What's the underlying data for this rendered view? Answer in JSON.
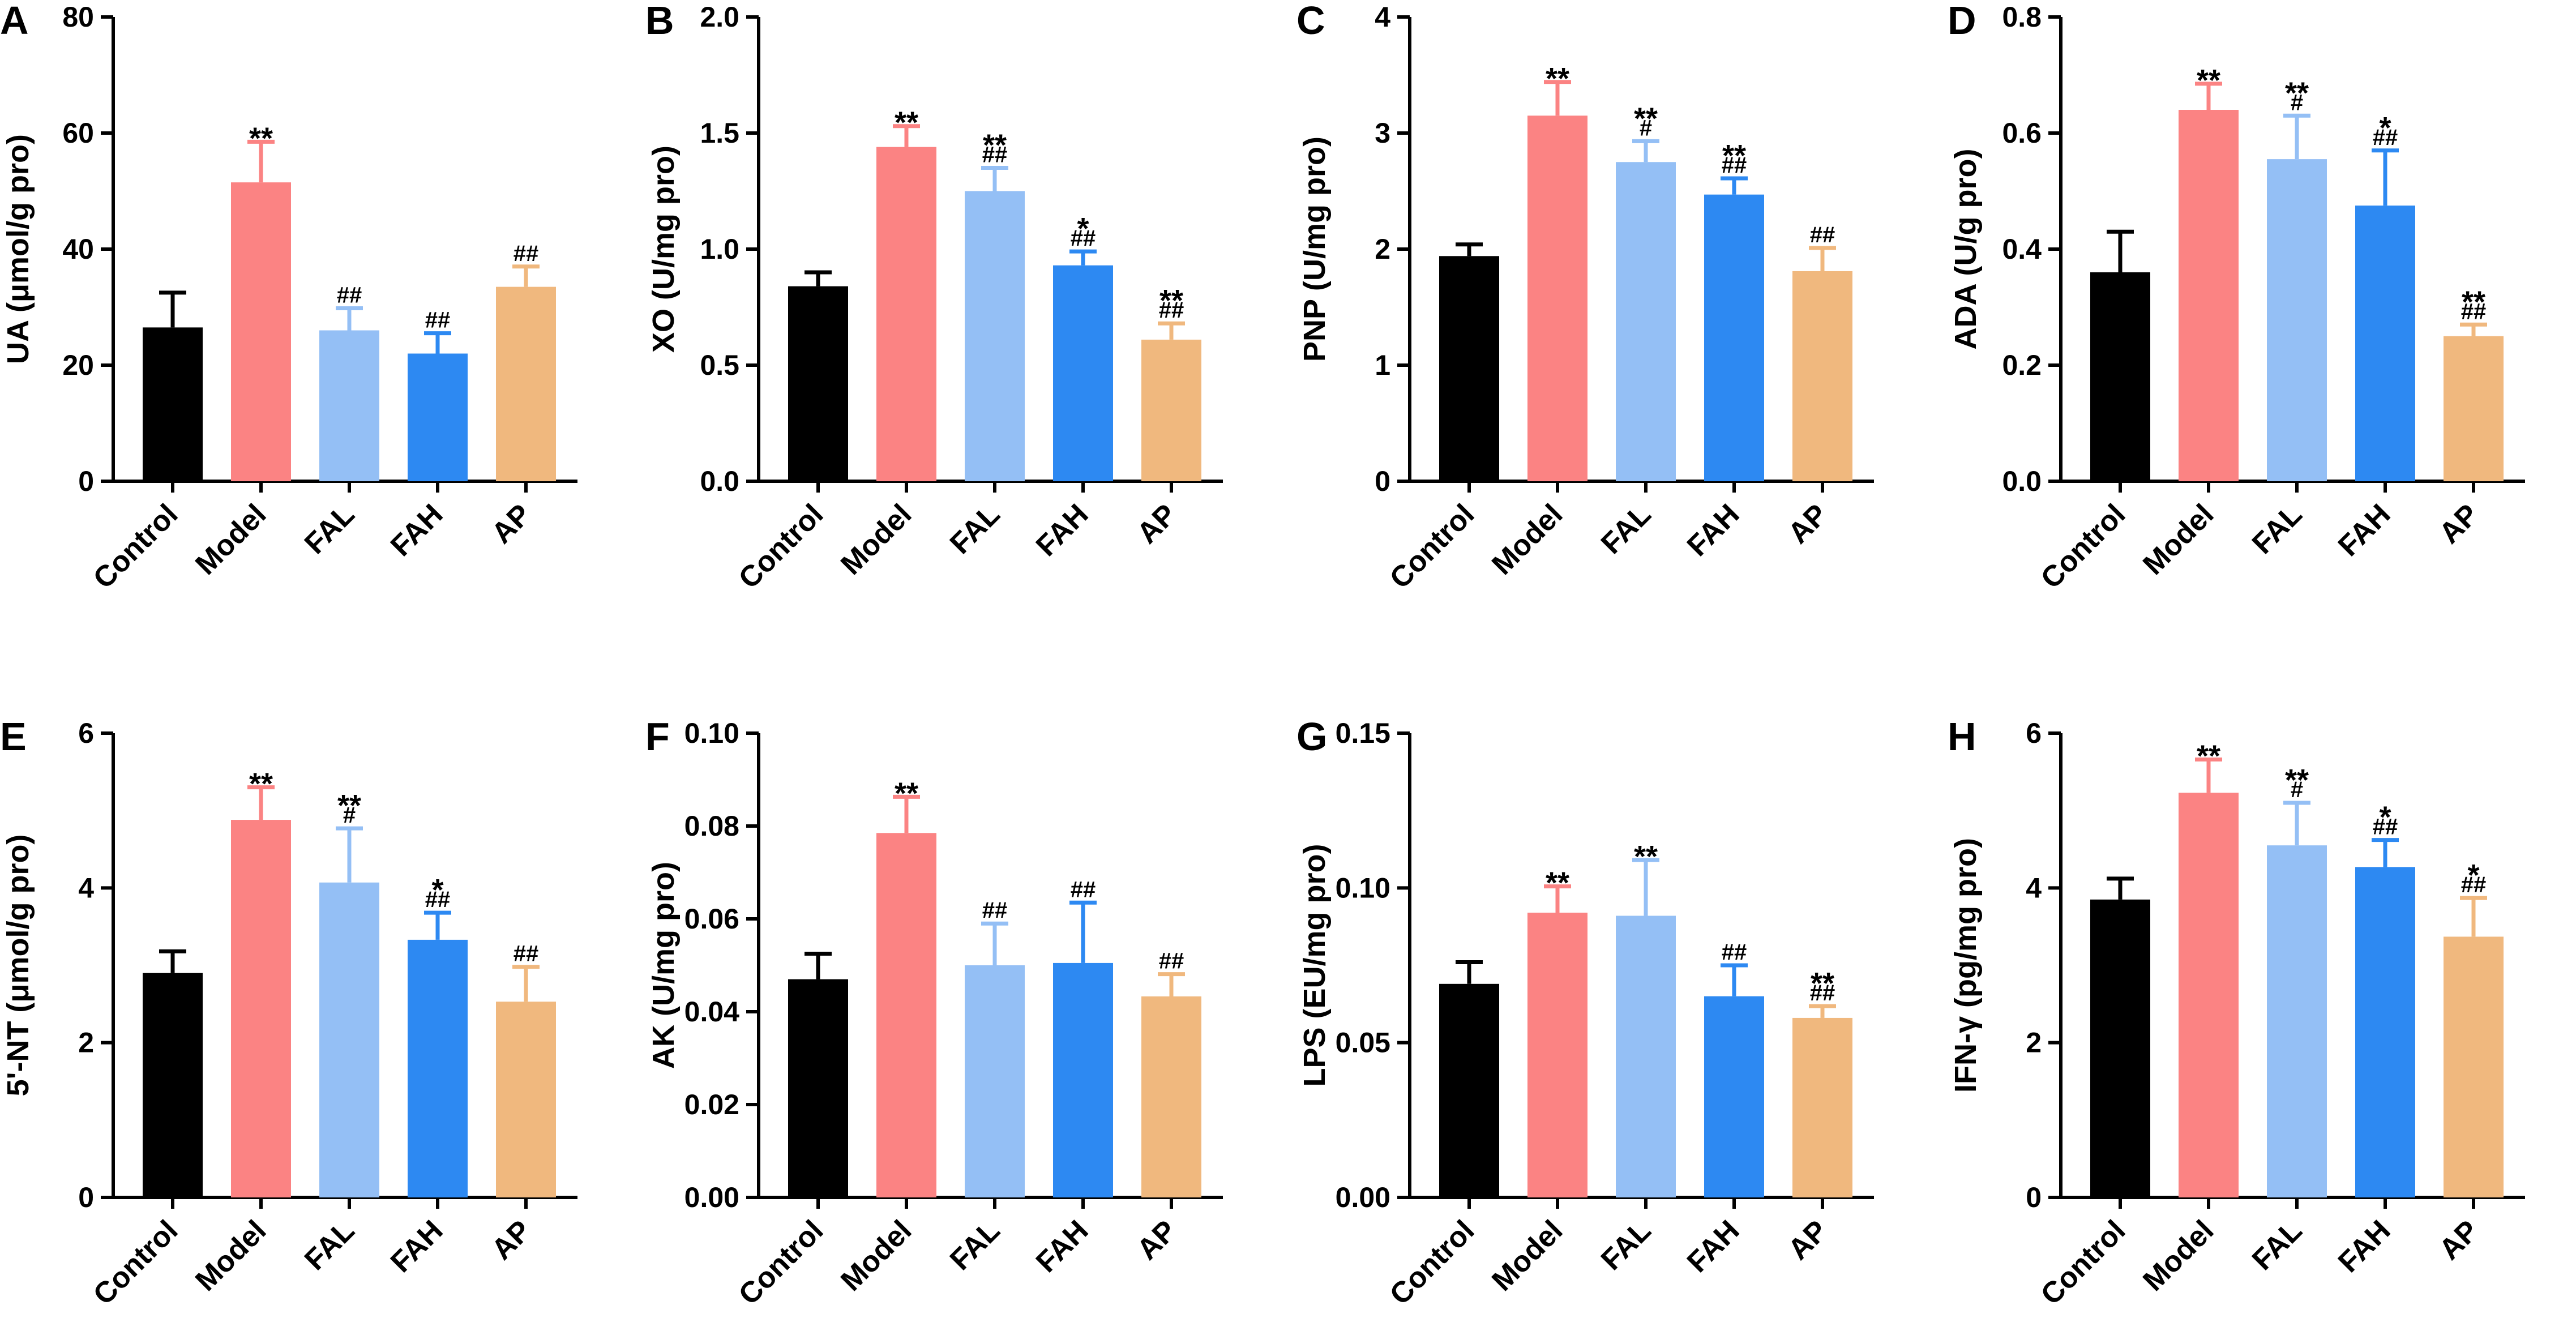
{
  "figure": {
    "group_colors": {
      "Control": "#000000",
      "Model": "#FB8383",
      "FAL": "#94BFF5",
      "FAH": "#2D89F2",
      "AP": "#F0B87E"
    }
  },
  "chart_data": [
    {
      "panel": "A",
      "type": "bar",
      "title": "",
      "xlabel": "",
      "ylabel": "UA (μmol/g pro)",
      "ylim": [
        0,
        80
      ],
      "yticks": [
        "0",
        "20",
        "40",
        "60",
        "80"
      ],
      "categories": [
        "Control",
        "Model",
        "FAL",
        "FAH",
        "AP"
      ],
      "values": [
        26.5,
        51.5,
        26,
        22,
        33.5
      ],
      "errors": [
        6,
        7,
        3.8,
        3.5,
        3.5
      ],
      "annotations": [
        {
          "stars": "",
          "hashes": ""
        },
        {
          "stars": "**",
          "hashes": ""
        },
        {
          "stars": "",
          "hashes": "##"
        },
        {
          "stars": "",
          "hashes": "##"
        },
        {
          "stars": "",
          "hashes": "##"
        }
      ]
    },
    {
      "panel": "B",
      "type": "bar",
      "title": "",
      "xlabel": "",
      "ylabel": "XO (U/mg pro)",
      "ylim": [
        0,
        2
      ],
      "yticks": [
        "0.0",
        "0.5",
        "1.0",
        "1.5",
        "2.0"
      ],
      "categories": [
        "Control",
        "Model",
        "FAL",
        "FAH",
        "AP"
      ],
      "values": [
        0.84,
        1.44,
        1.25,
        0.93,
        0.61
      ],
      "errors": [
        0.06,
        0.09,
        0.1,
        0.06,
        0.07
      ],
      "annotations": [
        {
          "stars": "",
          "hashes": ""
        },
        {
          "stars": "**",
          "hashes": ""
        },
        {
          "stars": "**",
          "hashes": "##"
        },
        {
          "stars": "*",
          "hashes": "##"
        },
        {
          "stars": "**",
          "hashes": "##"
        }
      ]
    },
    {
      "panel": "C",
      "type": "bar",
      "title": "",
      "xlabel": "",
      "ylabel": "PNP (U/mg pro)",
      "ylim": [
        0,
        4
      ],
      "yticks": [
        "0",
        "1",
        "2",
        "3",
        "4"
      ],
      "categories": [
        "Control",
        "Model",
        "FAL",
        "FAH",
        "AP"
      ],
      "values": [
        1.94,
        3.15,
        2.75,
        2.47,
        1.81
      ],
      "errors": [
        0.1,
        0.29,
        0.18,
        0.14,
        0.2
      ],
      "annotations": [
        {
          "stars": "",
          "hashes": ""
        },
        {
          "stars": "**",
          "hashes": ""
        },
        {
          "stars": "**",
          "hashes": "#"
        },
        {
          "stars": "**",
          "hashes": "##"
        },
        {
          "stars": "",
          "hashes": "##"
        }
      ]
    },
    {
      "panel": "D",
      "type": "bar",
      "title": "",
      "xlabel": "",
      "ylabel": "ADA (U/g pro)",
      "ylim": [
        0,
        0.8
      ],
      "yticks": [
        "0.0",
        "0.2",
        "0.4",
        "0.6",
        "0.8"
      ],
      "categories": [
        "Control",
        "Model",
        "FAL",
        "FAH",
        "AP"
      ],
      "values": [
        0.36,
        0.64,
        0.555,
        0.475,
        0.25
      ],
      "errors": [
        0.07,
        0.045,
        0.075,
        0.095,
        0.02
      ],
      "annotations": [
        {
          "stars": "",
          "hashes": ""
        },
        {
          "stars": "**",
          "hashes": ""
        },
        {
          "stars": "**",
          "hashes": "#"
        },
        {
          "stars": "*",
          "hashes": "##"
        },
        {
          "stars": "**",
          "hashes": "##"
        }
      ]
    },
    {
      "panel": "E",
      "type": "bar",
      "title": "",
      "xlabel": "",
      "ylabel": "5'-NT (μmol/g pro)",
      "ylim": [
        0,
        6
      ],
      "yticks": [
        "0",
        "2",
        "4",
        "6"
      ],
      "categories": [
        "Control",
        "Model",
        "FAL",
        "FAH",
        "AP"
      ],
      "values": [
        2.9,
        4.88,
        4.07,
        3.33,
        2.53
      ],
      "errors": [
        0.28,
        0.42,
        0.7,
        0.35,
        0.45
      ],
      "annotations": [
        {
          "stars": "",
          "hashes": ""
        },
        {
          "stars": "**",
          "hashes": ""
        },
        {
          "stars": "**",
          "hashes": "#"
        },
        {
          "stars": "*",
          "hashes": "##"
        },
        {
          "stars": "",
          "hashes": "##"
        }
      ]
    },
    {
      "panel": "F",
      "type": "bar",
      "title": "",
      "xlabel": "",
      "ylabel": "AK (U/mg pro)",
      "ylim": [
        0,
        0.1
      ],
      "yticks": [
        "0.00",
        "0.02",
        "0.04",
        "0.06",
        "0.08",
        "0.10"
      ],
      "categories": [
        "Control",
        "Model",
        "FAL",
        "FAH",
        "AP"
      ],
      "values": [
        0.047,
        0.0785,
        0.05,
        0.0505,
        0.0433
      ],
      "errors": [
        0.0055,
        0.0078,
        0.009,
        0.013,
        0.0048
      ],
      "annotations": [
        {
          "stars": "",
          "hashes": ""
        },
        {
          "stars": "**",
          "hashes": ""
        },
        {
          "stars": "",
          "hashes": "##"
        },
        {
          "stars": "",
          "hashes": "##"
        },
        {
          "stars": "",
          "hashes": "##"
        }
      ]
    },
    {
      "panel": "G",
      "type": "bar",
      "title": "",
      "xlabel": "",
      "ylabel": "LPS (EU/mg pro)",
      "ylim": [
        0,
        0.15
      ],
      "yticks": [
        "0.00",
        "0.05",
        "0.10",
        "0.15"
      ],
      "categories": [
        "Control",
        "Model",
        "FAL",
        "FAH",
        "AP"
      ],
      "values": [
        0.069,
        0.092,
        0.091,
        0.065,
        0.058
      ],
      "errors": [
        0.007,
        0.0085,
        0.018,
        0.01,
        0.0038
      ],
      "annotations": [
        {
          "stars": "",
          "hashes": ""
        },
        {
          "stars": "**",
          "hashes": ""
        },
        {
          "stars": "**",
          "hashes": ""
        },
        {
          "stars": "",
          "hashes": "##"
        },
        {
          "stars": "**",
          "hashes": "##"
        }
      ]
    },
    {
      "panel": "H",
      "type": "bar",
      "title": "",
      "xlabel": "",
      "ylabel": "IFN-γ (pg/mg pro)",
      "ylim": [
        0,
        6
      ],
      "yticks": [
        "0",
        "2",
        "4",
        "6"
      ],
      "categories": [
        "Control",
        "Model",
        "FAL",
        "FAH",
        "AP"
      ],
      "values": [
        3.85,
        5.23,
        4.55,
        4.27,
        3.37
      ],
      "errors": [
        0.27,
        0.43,
        0.55,
        0.35,
        0.5
      ],
      "annotations": [
        {
          "stars": "",
          "hashes": ""
        },
        {
          "stars": "**",
          "hashes": ""
        },
        {
          "stars": "**",
          "hashes": "#"
        },
        {
          "stars": "*",
          "hashes": "##"
        },
        {
          "stars": "*",
          "hashes": "##"
        }
      ]
    }
  ]
}
